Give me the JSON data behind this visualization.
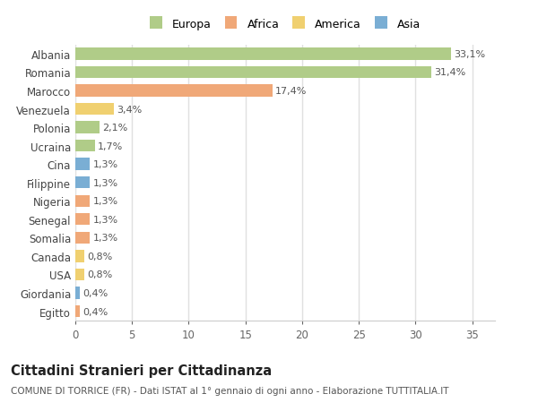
{
  "categories": [
    "Egitto",
    "Giordania",
    "USA",
    "Canada",
    "Somalia",
    "Senegal",
    "Nigeria",
    "Filippine",
    "Cina",
    "Ucraina",
    "Polonia",
    "Venezuela",
    "Marocco",
    "Romania",
    "Albania"
  ],
  "values": [
    0.4,
    0.4,
    0.8,
    0.8,
    1.3,
    1.3,
    1.3,
    1.3,
    1.3,
    1.7,
    2.1,
    3.4,
    17.4,
    31.4,
    33.1
  ],
  "labels": [
    "0,4%",
    "0,4%",
    "0,8%",
    "0,8%",
    "1,3%",
    "1,3%",
    "1,3%",
    "1,3%",
    "1,3%",
    "1,7%",
    "2,1%",
    "3,4%",
    "17,4%",
    "31,4%",
    "33,1%"
  ],
  "colors": [
    "#f0a878",
    "#7aaed4",
    "#f0d070",
    "#f0d070",
    "#f0a878",
    "#f0a878",
    "#f0a878",
    "#7aaed4",
    "#7aaed4",
    "#b0cc88",
    "#b0cc88",
    "#f0d070",
    "#f0a878",
    "#b0cc88",
    "#b0cc88"
  ],
  "legend_labels": [
    "Europa",
    "Africa",
    "America",
    "Asia"
  ],
  "legend_colors": [
    "#b0cc88",
    "#f0a878",
    "#f0d070",
    "#7aaed4"
  ],
  "title": "Cittadini Stranieri per Cittadinanza",
  "subtitle": "COMUNE DI TORRICE (FR) - Dati ISTAT al 1° gennaio di ogni anno - Elaborazione TUTTITALIA.IT",
  "xlim": [
    0,
    37
  ],
  "background_color": "#ffffff",
  "bar_height": 0.65,
  "tick_fontsize": 8.5,
  "label_fontsize": 8,
  "title_fontsize": 10.5,
  "subtitle_fontsize": 7.5
}
